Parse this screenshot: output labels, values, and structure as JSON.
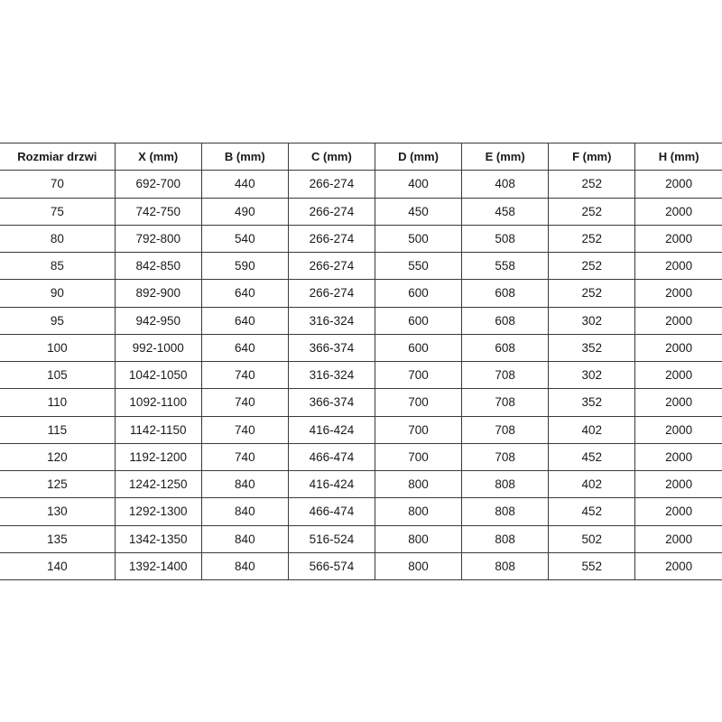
{
  "table": {
    "headers": [
      "Rozmiar drzwi",
      "X (mm)",
      "B (mm)",
      "C (mm)",
      "D (mm)",
      "E (mm)",
      "F (mm)",
      "H (mm)"
    ],
    "rows": [
      [
        "70",
        "692-700",
        "440",
        "266-274",
        "400",
        "408",
        "252",
        "2000"
      ],
      [
        "75",
        "742-750",
        "490",
        "266-274",
        "450",
        "458",
        "252",
        "2000"
      ],
      [
        "80",
        "792-800",
        "540",
        "266-274",
        "500",
        "508",
        "252",
        "2000"
      ],
      [
        "85",
        "842-850",
        "590",
        "266-274",
        "550",
        "558",
        "252",
        "2000"
      ],
      [
        "90",
        "892-900",
        "640",
        "266-274",
        "600",
        "608",
        "252",
        "2000"
      ],
      [
        "95",
        "942-950",
        "640",
        "316-324",
        "600",
        "608",
        "302",
        "2000"
      ],
      [
        "100",
        "992-1000",
        "640",
        "366-374",
        "600",
        "608",
        "352",
        "2000"
      ],
      [
        "105",
        "1042-1050",
        "740",
        "316-324",
        "700",
        "708",
        "302",
        "2000"
      ],
      [
        "110",
        "1092-1100",
        "740",
        "366-374",
        "700",
        "708",
        "352",
        "2000"
      ],
      [
        "115",
        "1142-1150",
        "740",
        "416-424",
        "700",
        "708",
        "402",
        "2000"
      ],
      [
        "120",
        "1192-1200",
        "740",
        "466-474",
        "700",
        "708",
        "452",
        "2000"
      ],
      [
        "125",
        "1242-1250",
        "840",
        "416-424",
        "800",
        "808",
        "402",
        "2000"
      ],
      [
        "130",
        "1292-1300",
        "840",
        "466-474",
        "800",
        "808",
        "452",
        "2000"
      ],
      [
        "135",
        "1342-1350",
        "840",
        "516-524",
        "800",
        "808",
        "502",
        "2000"
      ],
      [
        "140",
        "1392-1400",
        "840",
        "566-574",
        "800",
        "808",
        "552",
        "2000"
      ]
    ]
  }
}
